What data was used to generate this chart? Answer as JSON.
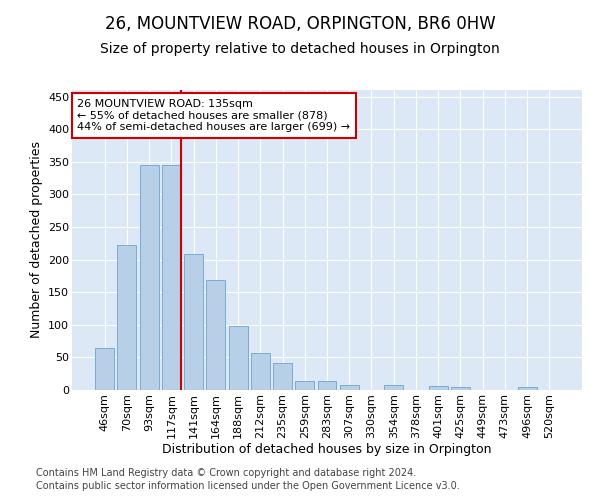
{
  "title": "26, MOUNTVIEW ROAD, ORPINGTON, BR6 0HW",
  "subtitle": "Size of property relative to detached houses in Orpington",
  "xlabel": "Distribution of detached houses by size in Orpington",
  "ylabel": "Number of detached properties",
  "bar_labels": [
    "46sqm",
    "70sqm",
    "93sqm",
    "117sqm",
    "141sqm",
    "164sqm",
    "188sqm",
    "212sqm",
    "235sqm",
    "259sqm",
    "283sqm",
    "307sqm",
    "330sqm",
    "354sqm",
    "378sqm",
    "401sqm",
    "425sqm",
    "449sqm",
    "473sqm",
    "496sqm",
    "520sqm"
  ],
  "bar_values": [
    65,
    222,
    345,
    345,
    209,
    168,
    98,
    57,
    42,
    14,
    14,
    8,
    0,
    7,
    0,
    6,
    5,
    0,
    0,
    5,
    0
  ],
  "bar_color": "#b8cfe8",
  "bar_edge_color": "#7aaad4",
  "vline_color": "#cc0000",
  "annotation_line1": "26 MOUNTVIEW ROAD: 135sqm",
  "annotation_line2": "← 55% of detached houses are smaller (878)",
  "annotation_line3": "44% of semi-detached houses are larger (699) →",
  "annotation_box_color": "white",
  "annotation_box_edge_color": "#cc0000",
  "ylim": [
    0,
    460
  ],
  "yticks": [
    0,
    50,
    100,
    150,
    200,
    250,
    300,
    350,
    400,
    450
  ],
  "footer_line1": "Contains HM Land Registry data © Crown copyright and database right 2024.",
  "footer_line2": "Contains public sector information licensed under the Open Government Licence v3.0.",
  "plot_bg_color": "#dce8f5",
  "title_fontsize": 12,
  "subtitle_fontsize": 10,
  "axis_label_fontsize": 9,
  "tick_fontsize": 8,
  "footer_fontsize": 7,
  "vline_index": 3.425
}
